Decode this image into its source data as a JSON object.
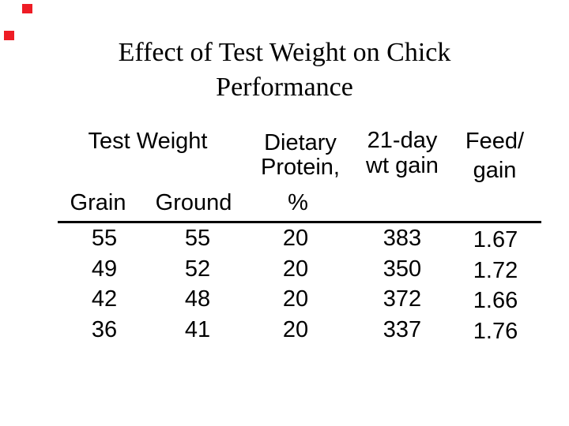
{
  "colors": {
    "background": "#ffffff",
    "text": "#000000",
    "marker_red": "#ee1c25"
  },
  "title": {
    "line1": "Effect of Test Weight on Chick",
    "line2": "Performance"
  },
  "table": {
    "headers": {
      "test_weight": "Test Weight",
      "dietary": [
        "Dietary",
        "Protein,"
      ],
      "wt_gain": [
        "21-day",
        "wt gain"
      ],
      "feed_gain": [
        "Feed/",
        "gain"
      ],
      "grain": "Grain",
      "ground": "Ground",
      "percent": "%"
    },
    "rows": [
      {
        "grain": "55",
        "ground": "55",
        "protein_pct": "20",
        "wt_gain": "383",
        "feed_gain": "1.67"
      },
      {
        "grain": "49",
        "ground": "52",
        "protein_pct": "20",
        "wt_gain": "350",
        "feed_gain": "1.72"
      },
      {
        "grain": "42",
        "ground": "48",
        "protein_pct": "20",
        "wt_gain": "372",
        "feed_gain": "1.66"
      },
      {
        "grain": "36",
        "ground": "41",
        "protein_pct": "20",
        "wt_gain": "337",
        "feed_gain": "1.76"
      }
    ]
  }
}
